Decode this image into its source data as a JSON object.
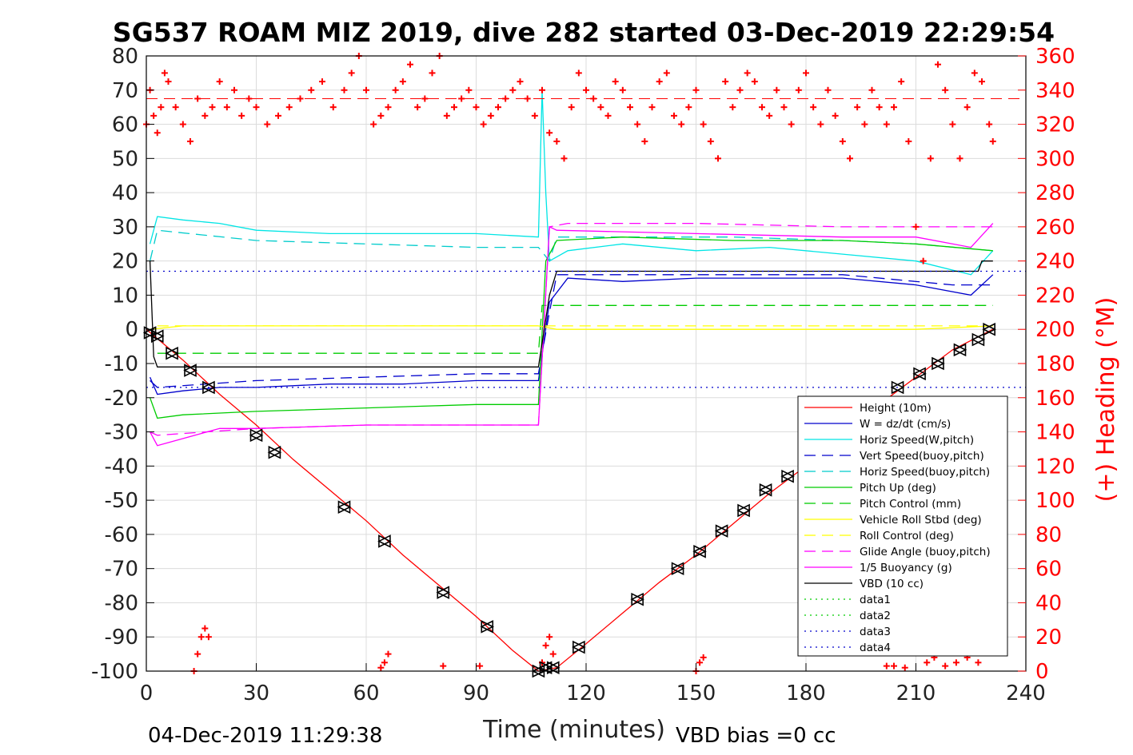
{
  "chart_data": {
    "type": "line",
    "title": "SG537 ROAM MIZ 2019, dive 282 started 03-Dec-2019 22:29:54",
    "xlabel": "Time (minutes)",
    "ylabel_right": "(+) Heading (°M)",
    "footer_left": "04-Dec-2019 11:29:38",
    "footer_right": "VBD bias =0 cc",
    "xlim": [
      0,
      240
    ],
    "ylim": [
      -100,
      80
    ],
    "ylim_right": [
      0,
      360
    ],
    "x_ticks": [
      "0",
      "30",
      "60",
      "90",
      "120",
      "150",
      "180",
      "210",
      "240"
    ],
    "y_ticks": [
      "80",
      "70",
      "60",
      "50",
      "40",
      "30",
      "20",
      "10",
      "0",
      "-10",
      "-20",
      "-30",
      "-40",
      "-50",
      "-60",
      "-70",
      "-80",
      "-90",
      "-100"
    ],
    "y_right_ticks": [
      "360",
      "340",
      "320",
      "300",
      "280",
      "260",
      "240",
      "220",
      "200",
      "180",
      "160",
      "140",
      "120",
      "100",
      "80",
      "60",
      "40",
      "20",
      "0"
    ],
    "grid": true,
    "legend_position": "bottom-right",
    "series": [
      {
        "name": "Height (10m)",
        "color": "#ff0000",
        "style": "solid",
        "x": [
          0,
          10,
          20,
          30,
          40,
          50,
          60,
          70,
          80,
          90,
          100,
          107,
          112,
          120,
          130,
          140,
          150,
          160,
          170,
          180,
          190,
          200,
          210,
          220,
          231
        ],
        "y": [
          0,
          -9,
          -19,
          -28,
          -38,
          -47,
          -56,
          -66,
          -75,
          -84,
          -94,
          -100,
          -99,
          -92,
          -83,
          -74,
          -66,
          -57,
          -48,
          -40,
          -31,
          -22,
          -14,
          -6,
          0
        ]
      },
      {
        "name": "W = dz/dt (cm/s)",
        "color": "#0000cc",
        "style": "solid",
        "x": [
          1,
          3,
          10,
          20,
          30,
          50,
          70,
          90,
          107,
          110,
          115,
          130,
          150,
          170,
          190,
          210,
          225,
          231
        ],
        "y": [
          -14,
          -19,
          -18,
          -17,
          -17,
          -16,
          -16,
          -15,
          -15,
          8,
          15,
          14,
          15,
          15,
          15,
          13,
          10,
          16
        ]
      },
      {
        "name": "Horiz Speed(W,pitch)",
        "color": "#00e5e5",
        "style": "solid",
        "x": [
          1,
          3,
          10,
          20,
          30,
          50,
          70,
          90,
          107,
          108,
          109,
          110,
          115,
          130,
          150,
          170,
          190,
          210,
          225,
          231
        ],
        "y": [
          25,
          33,
          32,
          31,
          29,
          28,
          28,
          28,
          27,
          70,
          40,
          20,
          23,
          25,
          23,
          24,
          22,
          20,
          16,
          23
        ]
      },
      {
        "name": "Vert Speed(buoy,pitch)",
        "color": "#0000cc",
        "style": "dashed",
        "x": [
          1,
          3,
          30,
          60,
          90,
          107,
          110,
          112,
          130,
          160,
          190,
          220,
          231
        ],
        "y": [
          -15,
          -17,
          -15,
          -14,
          -13,
          -13,
          5,
          16,
          16,
          16,
          16,
          13,
          13
        ]
      },
      {
        "name": "Horiz Speed(buoy,pitch)",
        "color": "#00cccc",
        "style": "dashed",
        "x": [
          1,
          3,
          30,
          60,
          90,
          107,
          110,
          112,
          130,
          160,
          190,
          210,
          231
        ],
        "y": [
          20,
          29,
          26,
          25,
          24,
          24,
          20,
          27,
          27,
          27,
          26,
          25,
          23
        ]
      },
      {
        "name": "Pitch Up (deg)",
        "color": "#00cc00",
        "style": "solid",
        "x": [
          1,
          3,
          10,
          30,
          60,
          90,
          107,
          109,
          112,
          130,
          160,
          190,
          210,
          231
        ],
        "y": [
          -20,
          -26,
          -25,
          -24,
          -23,
          -22,
          -22,
          20,
          26,
          27,
          26,
          26,
          25,
          23
        ]
      },
      {
        "name": "Pitch Control (mm)",
        "color": "#00cc00",
        "style": "dashed",
        "x": [
          3,
          107,
          108,
          231
        ],
        "y": [
          -7,
          -7,
          7,
          7
        ]
      },
      {
        "name": "Vehicle Roll Stbd (deg)",
        "color": "#ffff00",
        "style": "solid",
        "x": [
          1,
          10,
          30,
          60,
          90,
          107,
          112,
          130,
          150,
          170,
          190,
          210,
          231
        ],
        "y": [
          0,
          1,
          1,
          1,
          1,
          1,
          0,
          0,
          0,
          0,
          0,
          0,
          1
        ]
      },
      {
        "name": "Roll Control (deg)",
        "color": "#ffff00",
        "style": "dashed",
        "x": [
          3,
          231
        ],
        "y": [
          1,
          1
        ]
      },
      {
        "name": "Glide Angle (buoy,pitch)",
        "color": "#ff00ff",
        "style": "dashed",
        "x": [
          1,
          3,
          30,
          60,
          90,
          107,
          110,
          115,
          150,
          190,
          231
        ],
        "y": [
          -30,
          -31,
          -29,
          -28,
          -28,
          -28,
          30,
          31,
          31,
          30,
          30
        ]
      },
      {
        "name": "1/5 Buoyancy (g)",
        "color": "#ff00ff",
        "style": "solid",
        "x": [
          1,
          3,
          20,
          30,
          60,
          90,
          107,
          110,
          112,
          150,
          190,
          210,
          225,
          231
        ],
        "y": [
          -30,
          -34,
          -29,
          -29,
          -28,
          -28,
          -28,
          30,
          29,
          28,
          27,
          27,
          24,
          31
        ]
      },
      {
        "name": "VBD (10 cc)",
        "color": "#000000",
        "style": "solid",
        "x": [
          1,
          2,
          3,
          107,
          110,
          112,
          227,
          228,
          231
        ],
        "y": [
          20,
          -8,
          -11,
          -11,
          10,
          17,
          17,
          20,
          20
        ]
      },
      {
        "name": "data1",
        "color": "#00cc00",
        "style": "dotted",
        "x": [
          0,
          0
        ],
        "y": [
          0,
          0
        ]
      },
      {
        "name": "data2",
        "color": "#00cc00",
        "style": "dotted",
        "x": [
          0,
          0
        ],
        "y": [
          0,
          0
        ]
      },
      {
        "name": "data3",
        "color": "#0000cc",
        "style": "dotted",
        "x": [
          0,
          240
        ],
        "y": [
          17,
          17
        ]
      },
      {
        "name": "data4",
        "color": "#0000cc",
        "style": "dotted",
        "x": [
          0,
          240
        ],
        "y": [
          -17,
          -17
        ]
      }
    ],
    "heading_reference_lines": [
      335,
      335
    ],
    "heading": {
      "color": "#ff0000",
      "marker": "+",
      "x": [
        0,
        1,
        2,
        3,
        4,
        5,
        6,
        8,
        10,
        12,
        14,
        16,
        18,
        20,
        22,
        24,
        26,
        28,
        30,
        33,
        36,
        39,
        42,
        45,
        48,
        51,
        54,
        56,
        58,
        60,
        62,
        64,
        66,
        68,
        70,
        72,
        74,
        76,
        78,
        80,
        82,
        84,
        86,
        88,
        90,
        92,
        94,
        96,
        98,
        100,
        102,
        104,
        106,
        108,
        110,
        112,
        114,
        116,
        118,
        120,
        122,
        124,
        126,
        128,
        130,
        132,
        134,
        136,
        138,
        140,
        142,
        144,
        146,
        148,
        150,
        152,
        154,
        156,
        158,
        160,
        162,
        164,
        166,
        168,
        170,
        172,
        174,
        176,
        178,
        180,
        182,
        184,
        186,
        188,
        190,
        192,
        194,
        196,
        198,
        200,
        202,
        204,
        206,
        208,
        210,
        212,
        214,
        216,
        218,
        220,
        222,
        224,
        226,
        228,
        230,
        231
      ],
      "y": [
        320,
        340,
        325,
        315,
        330,
        350,
        345,
        330,
        320,
        310,
        335,
        325,
        330,
        345,
        330,
        340,
        325,
        335,
        330,
        320,
        325,
        330,
        335,
        340,
        345,
        330,
        340,
        350,
        360,
        340,
        320,
        325,
        330,
        340,
        345,
        355,
        330,
        335,
        350,
        360,
        325,
        330,
        335,
        340,
        330,
        320,
        325,
        330,
        335,
        340,
        345,
        335,
        325,
        340,
        315,
        310,
        300,
        330,
        350,
        340,
        335,
        330,
        325,
        345,
        340,
        330,
        320,
        310,
        330,
        345,
        350,
        325,
        320,
        330,
        340,
        320,
        310,
        300,
        345,
        330,
        340,
        350,
        345,
        330,
        325,
        340,
        330,
        320,
        340,
        350,
        330,
        320,
        340,
        325,
        310,
        300,
        330,
        320,
        340,
        330,
        320,
        330,
        345,
        310,
        260,
        240,
        300,
        355,
        340,
        320,
        300,
        330,
        350,
        345,
        320,
        310
      ]
    },
    "waypoint_markers": {
      "color": "#000000",
      "x": [
        1,
        3,
        7,
        12,
        17,
        30,
        35,
        54,
        65,
        81,
        93,
        107,
        109,
        111,
        118,
        134,
        145,
        151,
        157,
        163,
        169,
        175,
        205,
        211,
        216,
        222,
        227,
        230
      ],
      "y": [
        -1,
        -2,
        -7,
        -12,
        -17,
        -31,
        -36,
        -52,
        -62,
        -77,
        -87,
        -100,
        -99,
        -99,
        -93,
        -79,
        -70,
        -65,
        -59,
        -53,
        -47,
        -43,
        -17,
        -13,
        -10,
        -6,
        -3,
        0
      ]
    },
    "heading_dive_extra": {
      "x": [
        13,
        14,
        15,
        16,
        17,
        64,
        65,
        66,
        81,
        91,
        108,
        109,
        110,
        111,
        150,
        151,
        152,
        202,
        204,
        207,
        213,
        215,
        218,
        221,
        224,
        227
      ],
      "y": [
        0,
        10,
        20,
        25,
        20,
        2,
        5,
        10,
        3,
        3,
        5,
        15,
        20,
        10,
        0,
        5,
        8,
        3,
        3,
        2,
        5,
        8,
        3,
        5,
        8,
        5
      ]
    }
  }
}
